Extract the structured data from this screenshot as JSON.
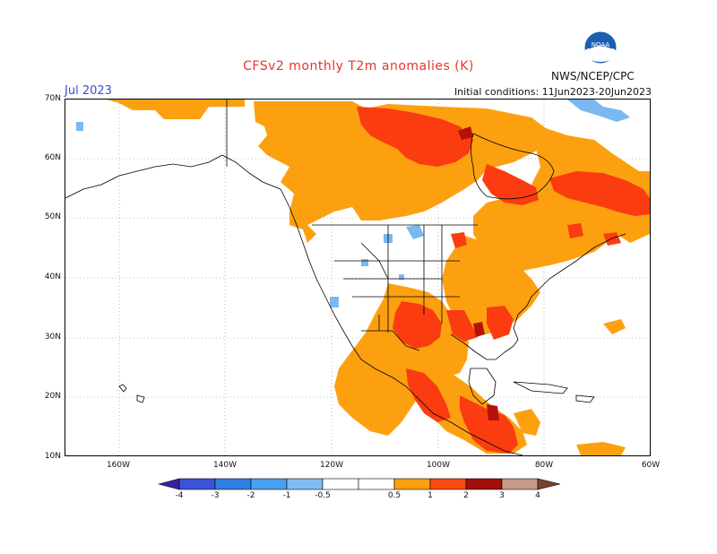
{
  "title": "CFSv2 monthly T2m anomalies (K)",
  "month": "Jul 2023",
  "initial_conditions": "Initial conditions: 11Jun2023-20Jun2023",
  "agency": "NWS/NCEP/CPC",
  "logo_text": "NOAA",
  "lat_labels": [
    "70N",
    "60N",
    "50N",
    "40N",
    "30N",
    "20N",
    "10N"
  ],
  "lon_labels": [
    "160W",
    "140W",
    "120W",
    "100W",
    "80W",
    "60W"
  ],
  "colorbar": {
    "labels": [
      "-4",
      "-3",
      "-2",
      "-1",
      "-0.5",
      "0.5",
      "1",
      "2",
      "3",
      "4"
    ],
    "colors": [
      "#3a1fa5",
      "#3c52d8",
      "#2f7fe0",
      "#4aa0f0",
      "#7fbcf2",
      "#ffffff",
      "#fda010",
      "#fa4a10",
      "#e02010",
      "#a01008",
      "#c99a88",
      "#7a4030"
    ]
  },
  "colors": {
    "warm_05_1": "#fda010",
    "warm_1_2": "#fa3c10",
    "warm_2_3": "#b3120a",
    "cool_05_1": "#7ab8f0"
  }
}
